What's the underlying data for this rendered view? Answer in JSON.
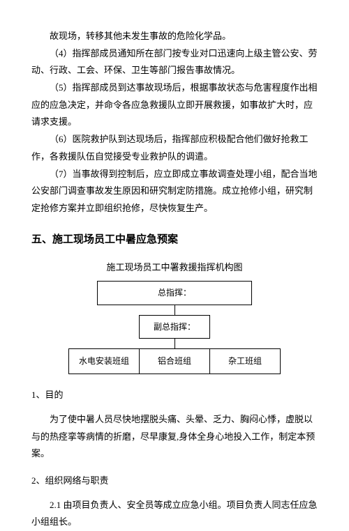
{
  "intro_line": "故现场，转移其他未发生事故的危险化学品。",
  "items": [
    "（4）指挥部成员通知所在部门按专业对口迅速向上级主管公安、劳动、行政、工会、环保、卫生等部门报告事故情况。",
    "（5）指挥部成员到达事故现场后，根据事故状态与危害程度作出相应的应急决定，并命令各应急救援队立即开展救援，如事故扩大时，应请求支援。",
    "（6）医院救护队到达现场后，指挥部应积极配合他们做好抢救工作，各救援队伍自觉接受专业救护队的调遣。",
    "（7）当事故得到控制后，应立即成立事故调查处理小组，配合当地公安部门调查事故发生原因和研究制定防措施。成立抢修小组，研究制定抢修方案并立即组织抢修，尽快恢复生产。"
  ],
  "section5_title": "五、施工现场员工中暑应急预案",
  "diagram": {
    "title": "施工现场员工中署救援指挥机构图",
    "top": "总指挥：",
    "mid": "副总指挥：",
    "cells": [
      "水电安装班组",
      "铝合班组",
      "杂工班组"
    ]
  },
  "purpose": {
    "heading": "1、目的",
    "text": "为了使中暑人员尽快地摆脱头痛、头晕、乏力、胸闷心悸，虚脱以与的热痉挛等病情的折磨，尽早康复,身体全身心地投入工作，制定本预案。"
  },
  "org": {
    "heading": "2、组织网络与职责",
    "text": "2.1 由项目负责人、安全员等成立应急小组。项目负责人同志任应急小组组长。"
  }
}
